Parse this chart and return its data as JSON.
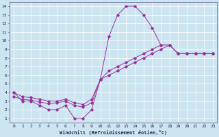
{
  "xlabel": "Windchill (Refroidissement éolien,°C)",
  "background_color": "#cce5f0",
  "line_color": "#993399",
  "xlim_min": -0.5,
  "xlim_max": 23.5,
  "ylim_min": 0.5,
  "ylim_max": 14.5,
  "xticks": [
    0,
    1,
    2,
    3,
    4,
    5,
    6,
    7,
    8,
    9,
    10,
    11,
    12,
    13,
    14,
    15,
    16,
    17,
    18,
    19,
    20,
    21,
    22,
    23
  ],
  "yticks": [
    1,
    2,
    3,
    4,
    5,
    6,
    7,
    8,
    9,
    10,
    11,
    12,
    13,
    14
  ],
  "line1_x": [
    0,
    1,
    2,
    3,
    4,
    5,
    6,
    7,
    8,
    9,
    10,
    11,
    12,
    13,
    14,
    15,
    16,
    17,
    18,
    19,
    20,
    21,
    22,
    23
  ],
  "line1_y": [
    4.0,
    3.0,
    3.0,
    2.5,
    2.0,
    2.0,
    2.5,
    1.0,
    1.0,
    2.0,
    5.5,
    10.5,
    13.0,
    14.0,
    14.0,
    13.0,
    11.5,
    9.5,
    9.5,
    8.5,
    8.5,
    8.5,
    8.5,
    8.5
  ],
  "line2_x": [
    0,
    1,
    2,
    3,
    4,
    5,
    6,
    7,
    8,
    9,
    10,
    11,
    12,
    13,
    14,
    15,
    16,
    17,
    18,
    19,
    20,
    21,
    22,
    23
  ],
  "line2_y": [
    3.5,
    3.2,
    3.1,
    2.9,
    2.7,
    2.8,
    3.0,
    2.5,
    2.3,
    2.8,
    5.5,
    6.0,
    6.5,
    7.0,
    7.5,
    8.0,
    8.5,
    9.0,
    9.5,
    8.5,
    8.5,
    8.5,
    8.5,
    8.5
  ],
  "line3_x": [
    0,
    1,
    2,
    3,
    4,
    5,
    6,
    7,
    8,
    9,
    10,
    11,
    12,
    13,
    14,
    15,
    16,
    17,
    18,
    19,
    20,
    21,
    22,
    23
  ],
  "line3_y": [
    4.0,
    3.5,
    3.4,
    3.2,
    3.0,
    3.0,
    3.2,
    2.8,
    2.6,
    3.2,
    5.5,
    6.5,
    7.0,
    7.5,
    8.0,
    8.5,
    9.0,
    9.5,
    9.5,
    8.5,
    8.5,
    8.5,
    8.5,
    8.5
  ],
  "xlabel_fontsize": 5.0,
  "tick_fontsize": 4.5,
  "linewidth": 0.7,
  "markersize": 1.8
}
